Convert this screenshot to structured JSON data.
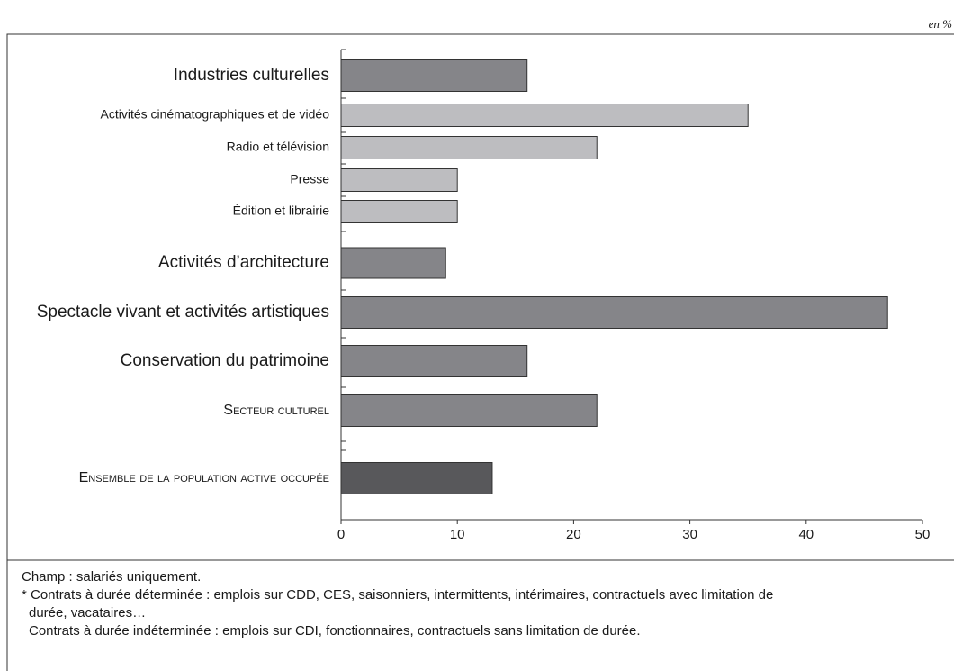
{
  "unit_note": "en %",
  "chart_data": {
    "type": "barh",
    "categories": [
      "Industries culturelles",
      "Activités cinématographiques et de vidéo",
      "Radio et télévision",
      "Presse",
      "Édition et librairie",
      "Activités d’architecture",
      "Spectacle vivant et activités artistiques",
      "Conservation du patrimoine",
      "Secteur culturel",
      "Ensemble de la population active occupée"
    ],
    "values": [
      16,
      35,
      22,
      10,
      10,
      9,
      47,
      16,
      22,
      13
    ],
    "colors": [
      "#858589",
      "#bdbdc0",
      "#bdbdc0",
      "#bdbdc0",
      "#bdbdc0",
      "#858589",
      "#858589",
      "#858589",
      "#858589",
      "#58585b"
    ],
    "xlim": [
      0,
      50
    ],
    "xticks": [
      0,
      10,
      20,
      30,
      40,
      50
    ]
  },
  "notes": [
    "Champ : salariés uniquement.",
    "* Contrats à durée déterminée : emplois sur CDD, CES, saisonniers, intermittents, intérimaires, contractuels avec limitation de",
    "durée, vacataires…",
    "Contrats à durée indéterminée : emplois sur CDI, fonctionnaires, contractuels sans limitation de durée."
  ]
}
